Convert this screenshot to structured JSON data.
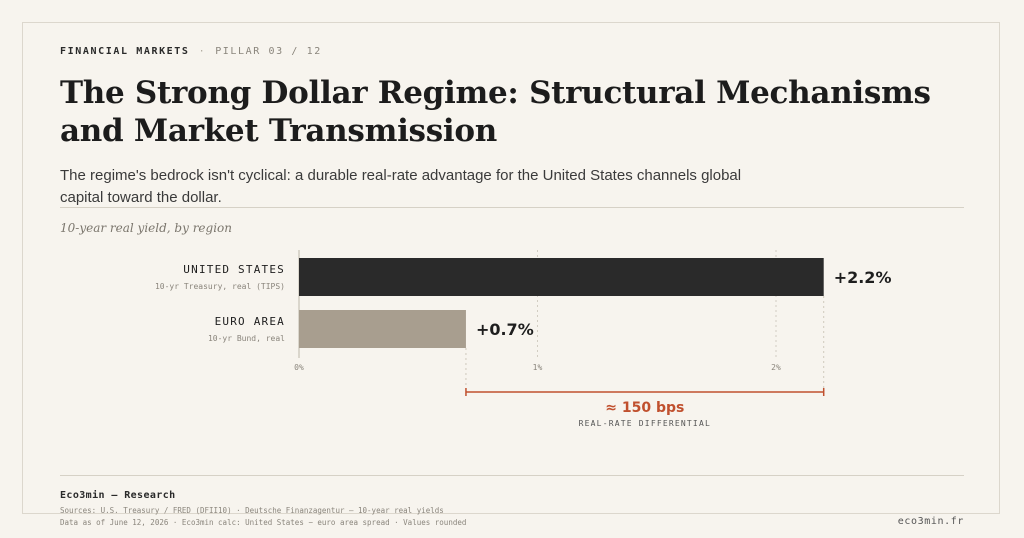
{
  "header": {
    "category": "FINANCIAL MARKETS",
    "separator": "·",
    "pillar": "PILLAR 03 / 12",
    "title": "The Strong Dollar Regime: Structural Mechanisms and Market Transmission",
    "subtitle": "The regime's bedrock isn't cyclical: a durable real-rate advantage for the United States channels global capital toward the dollar."
  },
  "chart_data": {
    "type": "bar",
    "orientation": "horizontal",
    "title": "10-year real yield, by region",
    "categories": [
      "UNITED STATES",
      "EURO AREA"
    ],
    "category_notes": [
      "10-yr Treasury, real (TIPS)",
      "10-yr Bund, real"
    ],
    "values": [
      2.2,
      0.7
    ],
    "value_labels": [
      "+2.2%",
      "+0.7%"
    ],
    "bar_colors": [
      "#2a2a2a",
      "#a89e8f"
    ],
    "xlim": [
      0,
      2.2
    ],
    "ticks": [
      0,
      1,
      2
    ],
    "tick_labels": [
      "0%",
      "1%",
      "2%"
    ],
    "grid": true,
    "annotation": {
      "from": 0.7,
      "to": 2.2,
      "label": "≈ 150 bps",
      "sublabel": "REAL-RATE DIFFERENTIAL",
      "color": "#c0502e"
    }
  },
  "footer": {
    "brand": "Eco3min — Research",
    "sources": "Sources: U.S. Treasury / FRED (DFII10) · Deutsche Finanzagentur — 10-year real yields",
    "asof": "Data as of June 12, 2026 · Eco3min calc: United States − euro area spread · Values rounded",
    "site": "eco3min.fr"
  }
}
